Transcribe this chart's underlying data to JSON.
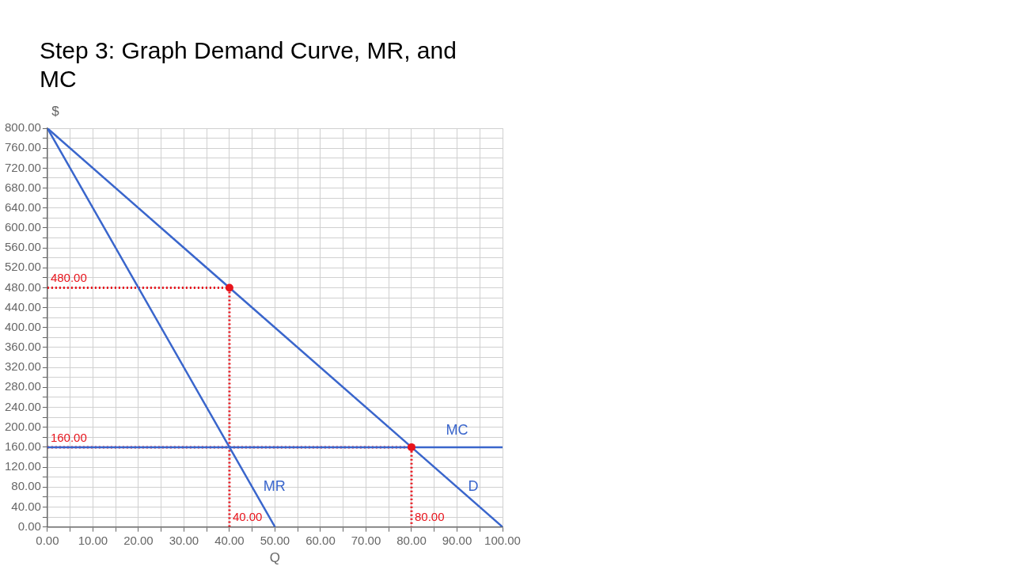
{
  "chart_data": {
    "type": "line",
    "title": "Step 3: Graph Demand Curve, MR, and MC",
    "xlabel": "Q",
    "ylabel": "$",
    "xlim": [
      0,
      100
    ],
    "ylim": [
      0,
      800
    ],
    "xticks": [
      {
        "value": 0,
        "label": "0.00"
      },
      {
        "value": 5,
        "label": null
      },
      {
        "value": 10,
        "label": "10.00"
      },
      {
        "value": 15,
        "label": null
      },
      {
        "value": 20,
        "label": "20.00"
      },
      {
        "value": 25,
        "label": null
      },
      {
        "value": 30,
        "label": "30.00"
      },
      {
        "value": 35,
        "label": null
      },
      {
        "value": 40,
        "label": "40.00"
      },
      {
        "value": 45,
        "label": null
      },
      {
        "value": 50,
        "label": "50.00"
      },
      {
        "value": 55,
        "label": null
      },
      {
        "value": 60,
        "label": "60.00"
      },
      {
        "value": 65,
        "label": null
      },
      {
        "value": 70,
        "label": "70.00"
      },
      {
        "value": 75,
        "label": null
      },
      {
        "value": 80,
        "label": "80.00"
      },
      {
        "value": 85,
        "label": null
      },
      {
        "value": 90,
        "label": "90.00"
      },
      {
        "value": 95,
        "label": null
      },
      {
        "value": 100,
        "label": "100.00"
      }
    ],
    "yticks": [
      {
        "value": 0,
        "label": "0.00"
      },
      {
        "value": 20,
        "label": null
      },
      {
        "value": 40,
        "label": "40.00"
      },
      {
        "value": 60,
        "label": null
      },
      {
        "value": 80,
        "label": "80.00"
      },
      {
        "value": 100,
        "label": null
      },
      {
        "value": 120,
        "label": "120.00"
      },
      {
        "value": 140,
        "label": null
      },
      {
        "value": 160,
        "label": "160.00"
      },
      {
        "value": 180,
        "label": null
      },
      {
        "value": 200,
        "label": "200.00"
      },
      {
        "value": 220,
        "label": null
      },
      {
        "value": 240,
        "label": "240.00"
      },
      {
        "value": 260,
        "label": null
      },
      {
        "value": 280,
        "label": "280.00"
      },
      {
        "value": 300,
        "label": null
      },
      {
        "value": 320,
        "label": "320.00"
      },
      {
        "value": 340,
        "label": null
      },
      {
        "value": 360,
        "label": "360.00"
      },
      {
        "value": 380,
        "label": null
      },
      {
        "value": 400,
        "label": "400.00"
      },
      {
        "value": 420,
        "label": null
      },
      {
        "value": 440,
        "label": "440.00"
      },
      {
        "value": 460,
        "label": null
      },
      {
        "value": 480,
        "label": "480.00"
      },
      {
        "value": 500,
        "label": null
      },
      {
        "value": 520,
        "label": "520.00"
      },
      {
        "value": 540,
        "label": null
      },
      {
        "value": 560,
        "label": "560.00"
      },
      {
        "value": 580,
        "label": null
      },
      {
        "value": 600,
        "label": "600.00"
      },
      {
        "value": 620,
        "label": null
      },
      {
        "value": 640,
        "label": "640.00"
      },
      {
        "value": 660,
        "label": null
      },
      {
        "value": 680,
        "label": "680.00"
      },
      {
        "value": 700,
        "label": null
      },
      {
        "value": 720,
        "label": "720.00"
      },
      {
        "value": 740,
        "label": null
      },
      {
        "value": 760,
        "label": "760.00"
      },
      {
        "value": 780,
        "label": null
      },
      {
        "value": 800,
        "label": "800.00"
      }
    ],
    "grid": true,
    "legend": false,
    "marker": "none",
    "line_style": "solid",
    "series": [
      {
        "name": "D",
        "color": "#3a66cc",
        "x": [
          0,
          100
        ],
        "values": [
          800,
          0
        ]
      },
      {
        "name": "MR",
        "color": "#3a66cc",
        "x": [
          0,
          50
        ],
        "values": [
          800,
          0
        ]
      },
      {
        "name": "MC",
        "color": "#3a66cc",
        "x": [
          0,
          100
        ],
        "values": [
          160,
          160
        ]
      },
      {
        "color": "#e8141c",
        "line_style": "dotted",
        "x": [
          0,
          40,
          40
        ],
        "values": [
          480,
          480,
          0
        ]
      },
      {
        "color": "#e8141c",
        "line_style": "dotted",
        "x": [
          0,
          80,
          80
        ],
        "values": [
          160,
          160,
          0
        ]
      },
      {
        "type": "scatter",
        "marker": "circle",
        "color": "#e8141c",
        "x": [
          40,
          80
        ],
        "values": [
          480,
          160
        ]
      }
    ],
    "annotations": [
      {
        "text": "480.00",
        "x": 0,
        "y": 480
      },
      {
        "text": "160.00",
        "x": 0,
        "y": 160
      },
      {
        "text": "40.00",
        "x": 40,
        "y": 0
      },
      {
        "text": "80.00",
        "x": 80,
        "y": 0
      }
    ]
  }
}
